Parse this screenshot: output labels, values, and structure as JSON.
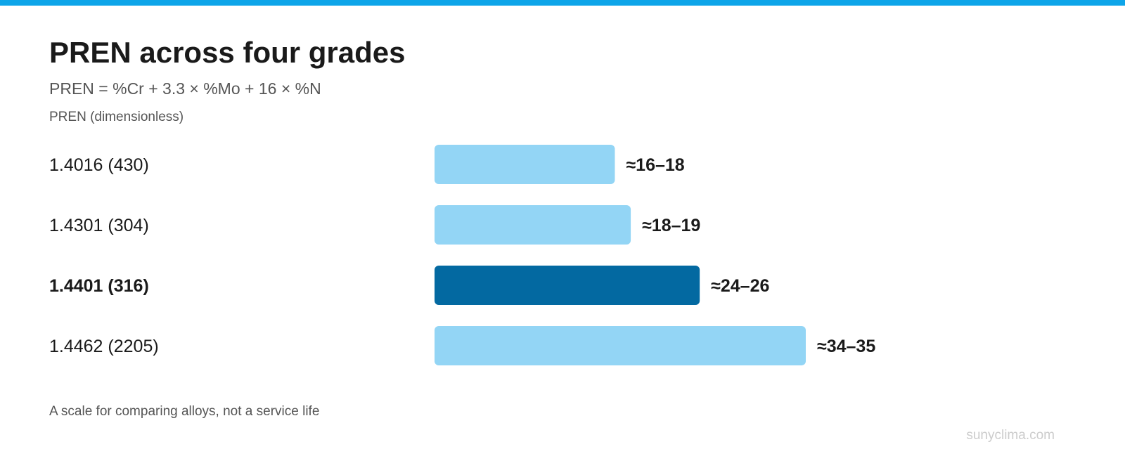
{
  "chart_data": {
    "type": "bar",
    "orientation": "horizontal",
    "title": "PREN across four grades",
    "subtitle": "PREN = %Cr + 3.3 × %Mo + 16 × %N",
    "ylabel": "PREN (dimensionless)",
    "categories": [
      "1.4016 (430)",
      "1.4301 (304)",
      "1.4401 (316)",
      "1.4462 (2205)"
    ],
    "values": [
      17,
      18.5,
      25,
      35
    ],
    "value_labels": [
      "≈16–18",
      "≈18–19",
      "≈24–26",
      "≈34–35"
    ],
    "highlight": [
      false,
      false,
      true,
      false
    ],
    "xlim": [
      0,
      35
    ],
    "grid": false,
    "legend": "none",
    "colors": {
      "bar": "#93d5f5",
      "highlight": "#0369a1",
      "accent": "#0ea5e9"
    }
  },
  "note": "A scale for comparing alloys, not a service life",
  "watermark": "sunyclima.com"
}
